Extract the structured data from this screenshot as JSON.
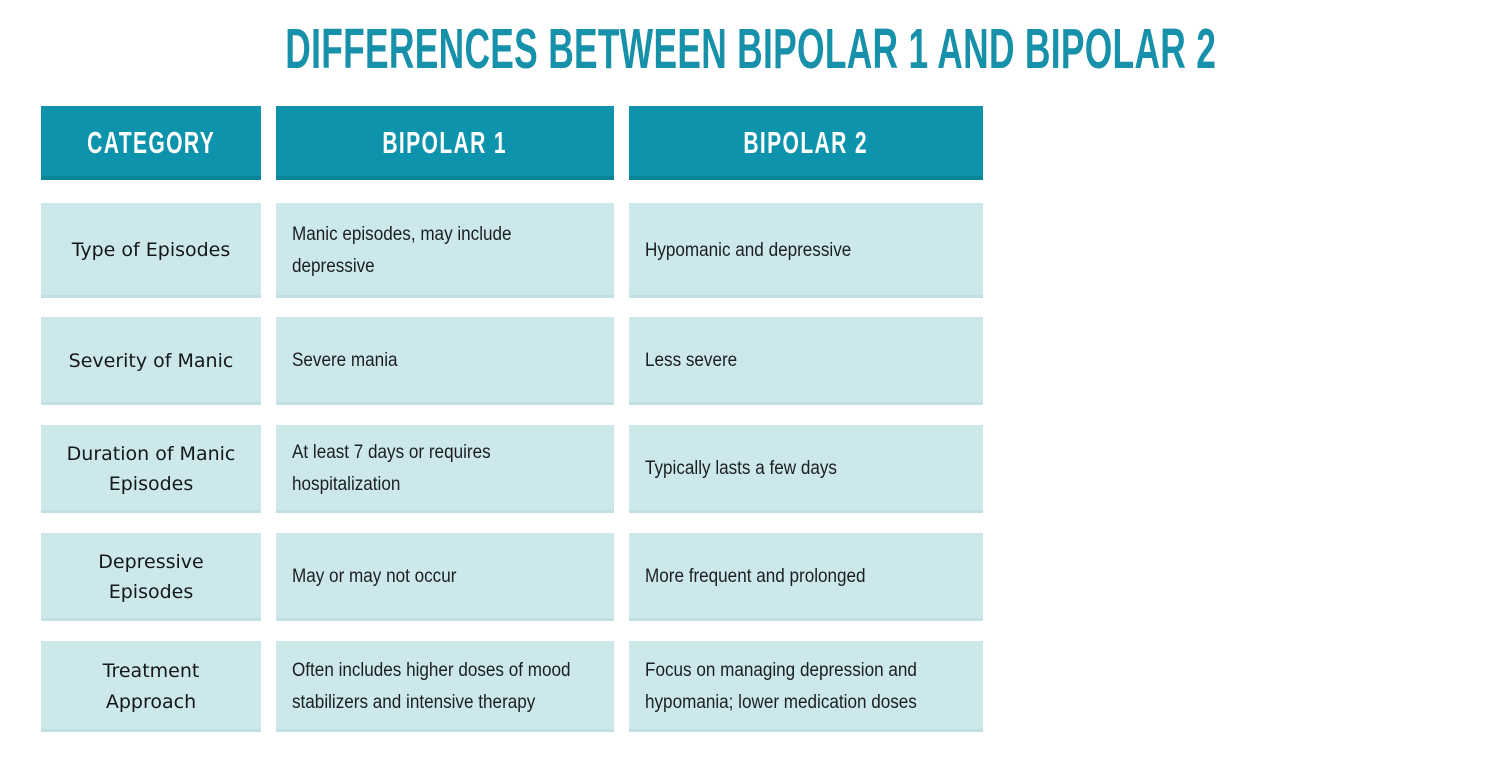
{
  "title": "DIFFERENCES BETWEEN BIPOLAR 1 AND BIPOLAR 2",
  "colors": {
    "title_text": "#1791a9",
    "header_bg": "#0d93ac",
    "header_text": "#ffffff",
    "cell_bg": "#cce8eb",
    "body_text": "#1b1f23",
    "background": "#ffffff"
  },
  "table": {
    "headers": [
      "CATEGORY",
      "BIPOLAR 1",
      "BIPOLAR 2"
    ],
    "rows": [
      {
        "category": "Type of Episodes",
        "bipolar1": "Manic episodes, may include\ndepressive",
        "bipolar2": "Hypomanic and depressive"
      },
      {
        "category": "Severity of Manic",
        "bipolar1": "Severe mania",
        "bipolar2": "Less severe"
      },
      {
        "category": "Duration of Manic\nEpisodes",
        "bipolar1": "At least 7 days or requires\nhospitalization",
        "bipolar2": "Typically lasts a few days"
      },
      {
        "category": "Depressive\nEpisodes",
        "bipolar1": "May or may not occur",
        "bipolar2": "More frequent and prolonged"
      },
      {
        "category": "Treatment\nApproach",
        "bipolar1": "Often includes higher doses of mood\nstabilizers and intensive therapy",
        "bipolar2": "Focus on managing depression and\nhypomania; lower medication doses"
      }
    ]
  }
}
